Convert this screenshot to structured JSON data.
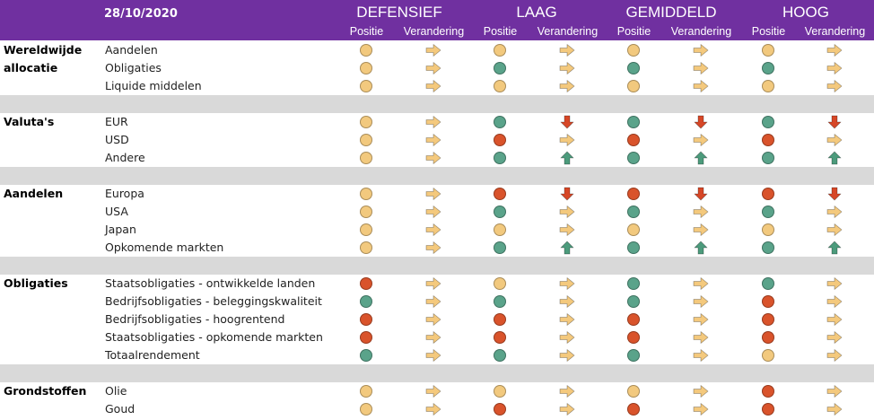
{
  "header": {
    "date": "28/10/2020",
    "profiles": [
      "DEFENSIEF",
      "LAAG",
      "GEMIDDELD",
      "HOOG"
    ],
    "sub_position": "Positie",
    "sub_change": "Verandering"
  },
  "colors": {
    "header_bg": "#7030a0",
    "separator": "#d9d9d9",
    "yellow": "#f2c97e",
    "green": "#5aa38a",
    "red": "#d9532b",
    "arrow_right": "#f4c97d",
    "arrow_down": "#d74727",
    "arrow_up": "#4c9b7c"
  },
  "sections": [
    {
      "category": "Wereldwijde allocatie",
      "category_lines": [
        "Wereldwijde",
        "allocatie"
      ],
      "rows": [
        {
          "label": "Aandelen",
          "cells": [
            [
              "yellow",
              "right"
            ],
            [
              "yellow",
              "right"
            ],
            [
              "yellow",
              "right"
            ],
            [
              "yellow",
              "right"
            ]
          ]
        },
        {
          "label": "Obligaties",
          "cells": [
            [
              "yellow",
              "right"
            ],
            [
              "green",
              "right"
            ],
            [
              "green",
              "right"
            ],
            [
              "green",
              "right"
            ]
          ]
        },
        {
          "label": "Liquide middelen",
          "cells": [
            [
              "yellow",
              "right"
            ],
            [
              "yellow",
              "right"
            ],
            [
              "yellow",
              "right"
            ],
            [
              "yellow",
              "right"
            ]
          ]
        }
      ]
    },
    {
      "category": "Valuta's",
      "rows": [
        {
          "label": "EUR",
          "cells": [
            [
              "yellow",
              "right"
            ],
            [
              "green",
              "down"
            ],
            [
              "green",
              "down"
            ],
            [
              "green",
              "down"
            ]
          ]
        },
        {
          "label": "USD",
          "cells": [
            [
              "yellow",
              "right"
            ],
            [
              "red",
              "right"
            ],
            [
              "red",
              "right"
            ],
            [
              "red",
              "right"
            ]
          ]
        },
        {
          "label": "Andere",
          "cells": [
            [
              "yellow",
              "right"
            ],
            [
              "green",
              "up"
            ],
            [
              "green",
              "up"
            ],
            [
              "green",
              "up"
            ]
          ]
        }
      ]
    },
    {
      "category": "Aandelen",
      "rows": [
        {
          "label": "Europa",
          "cells": [
            [
              "yellow",
              "right"
            ],
            [
              "red",
              "down"
            ],
            [
              "red",
              "down"
            ],
            [
              "red",
              "down"
            ]
          ]
        },
        {
          "label": "USA",
          "cells": [
            [
              "yellow",
              "right"
            ],
            [
              "green",
              "right"
            ],
            [
              "green",
              "right"
            ],
            [
              "green",
              "right"
            ]
          ]
        },
        {
          "label": "Japan",
          "cells": [
            [
              "yellow",
              "right"
            ],
            [
              "yellow",
              "right"
            ],
            [
              "yellow",
              "right"
            ],
            [
              "yellow",
              "right"
            ]
          ]
        },
        {
          "label": "Opkomende markten",
          "cells": [
            [
              "yellow",
              "right"
            ],
            [
              "green",
              "up"
            ],
            [
              "green",
              "up"
            ],
            [
              "green",
              "up"
            ]
          ]
        }
      ]
    },
    {
      "category": "Obligaties",
      "rows": [
        {
          "label": "Staatsobligaties - ontwikkelde landen",
          "cells": [
            [
              "red",
              "right"
            ],
            [
              "yellow",
              "right"
            ],
            [
              "green",
              "right"
            ],
            [
              "green",
              "right"
            ]
          ]
        },
        {
          "label": "Bedrijfsobligaties - beleggingskwaliteit",
          "cells": [
            [
              "green",
              "right"
            ],
            [
              "green",
              "right"
            ],
            [
              "green",
              "right"
            ],
            [
              "red",
              "right"
            ]
          ]
        },
        {
          "label": "Bedrijfsobligaties - hoogrentend",
          "cells": [
            [
              "red",
              "right"
            ],
            [
              "red",
              "right"
            ],
            [
              "red",
              "right"
            ],
            [
              "red",
              "right"
            ]
          ]
        },
        {
          "label": "Staatsobligaties - opkomende markten",
          "cells": [
            [
              "red",
              "right"
            ],
            [
              "red",
              "right"
            ],
            [
              "red",
              "right"
            ],
            [
              "red",
              "right"
            ]
          ]
        },
        {
          "label": "Totaalrendement",
          "cells": [
            [
              "green",
              "right"
            ],
            [
              "green",
              "right"
            ],
            [
              "green",
              "right"
            ],
            [
              "yellow",
              "right"
            ]
          ]
        }
      ]
    },
    {
      "category": "Grondstoffen",
      "rows": [
        {
          "label": "Olie",
          "cells": [
            [
              "yellow",
              "right"
            ],
            [
              "yellow",
              "right"
            ],
            [
              "yellow",
              "right"
            ],
            [
              "red",
              "right"
            ]
          ]
        },
        {
          "label": "Goud",
          "cells": [
            [
              "yellow",
              "right"
            ],
            [
              "red",
              "right"
            ],
            [
              "red",
              "right"
            ],
            [
              "red",
              "right"
            ]
          ]
        }
      ]
    }
  ]
}
